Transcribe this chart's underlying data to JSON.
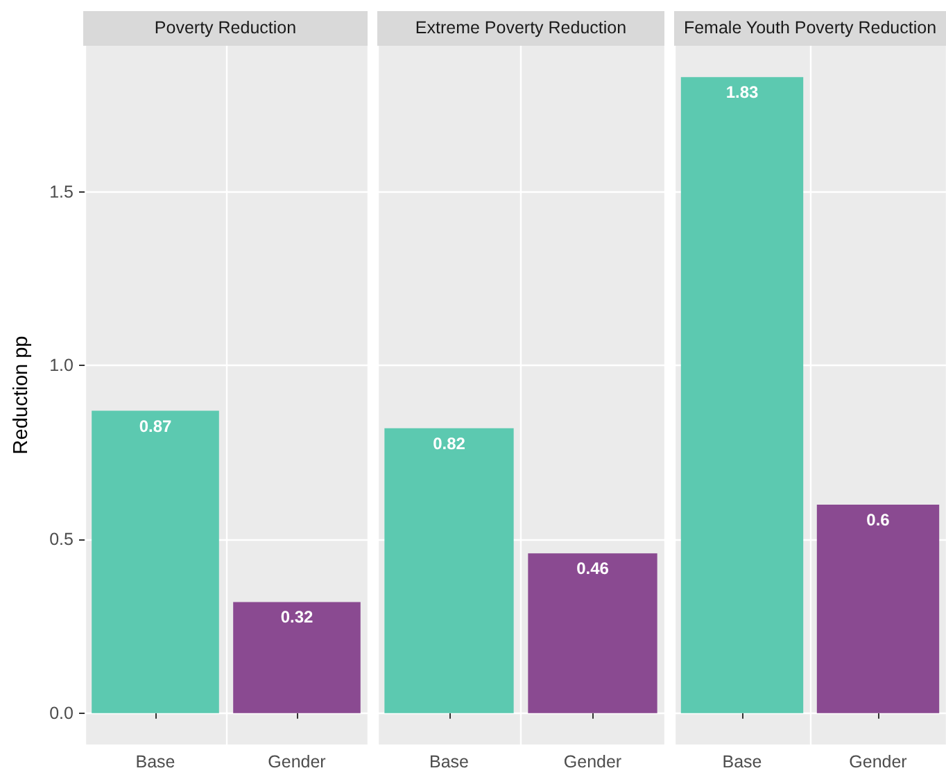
{
  "chart_data": [
    {
      "type": "bar",
      "title": "Poverty Reduction",
      "ylabel": "Reduction pp",
      "categories": [
        "Base",
        "Gender"
      ],
      "values": [
        0.87,
        0.32
      ],
      "colors": [
        "#5cc9b0",
        "#8a4a91"
      ],
      "ylim": [
        -0.09,
        1.92
      ],
      "yticks": [
        {
          "value": 0,
          "label": "0.0"
        },
        {
          "value": 0.5,
          "label": "0.5"
        },
        {
          "value": 1,
          "label": "1.0"
        },
        {
          "value": 1.5,
          "label": "1.5"
        }
      ],
      "grid": true,
      "data_labels": true
    },
    {
      "type": "bar",
      "title": "Extreme Poverty Reduction",
      "categories": [
        "Base",
        "Gender"
      ],
      "values": [
        0.82,
        0.46
      ],
      "colors": [
        "#5cc9b0",
        "#8a4a91"
      ],
      "ylim": [
        -0.09,
        1.92
      ],
      "yticks": [
        0,
        0.5,
        1,
        1.5
      ],
      "grid": true,
      "data_labels": true,
      "tick_labels": "x"
    },
    {
      "type": "bar",
      "title": "Female Youth Poverty Reduction",
      "categories": [
        "Base",
        "Gender"
      ],
      "values": [
        1.83,
        0.6
      ],
      "colors": [
        "#5cc9b0",
        "#8a4a91"
      ],
      "ylim": [
        -0.09,
        1.92
      ],
      "yticks": [
        0,
        0.5,
        1,
        1.5
      ],
      "grid": true,
      "data_labels": true,
      "tick_labels": "x"
    }
  ]
}
